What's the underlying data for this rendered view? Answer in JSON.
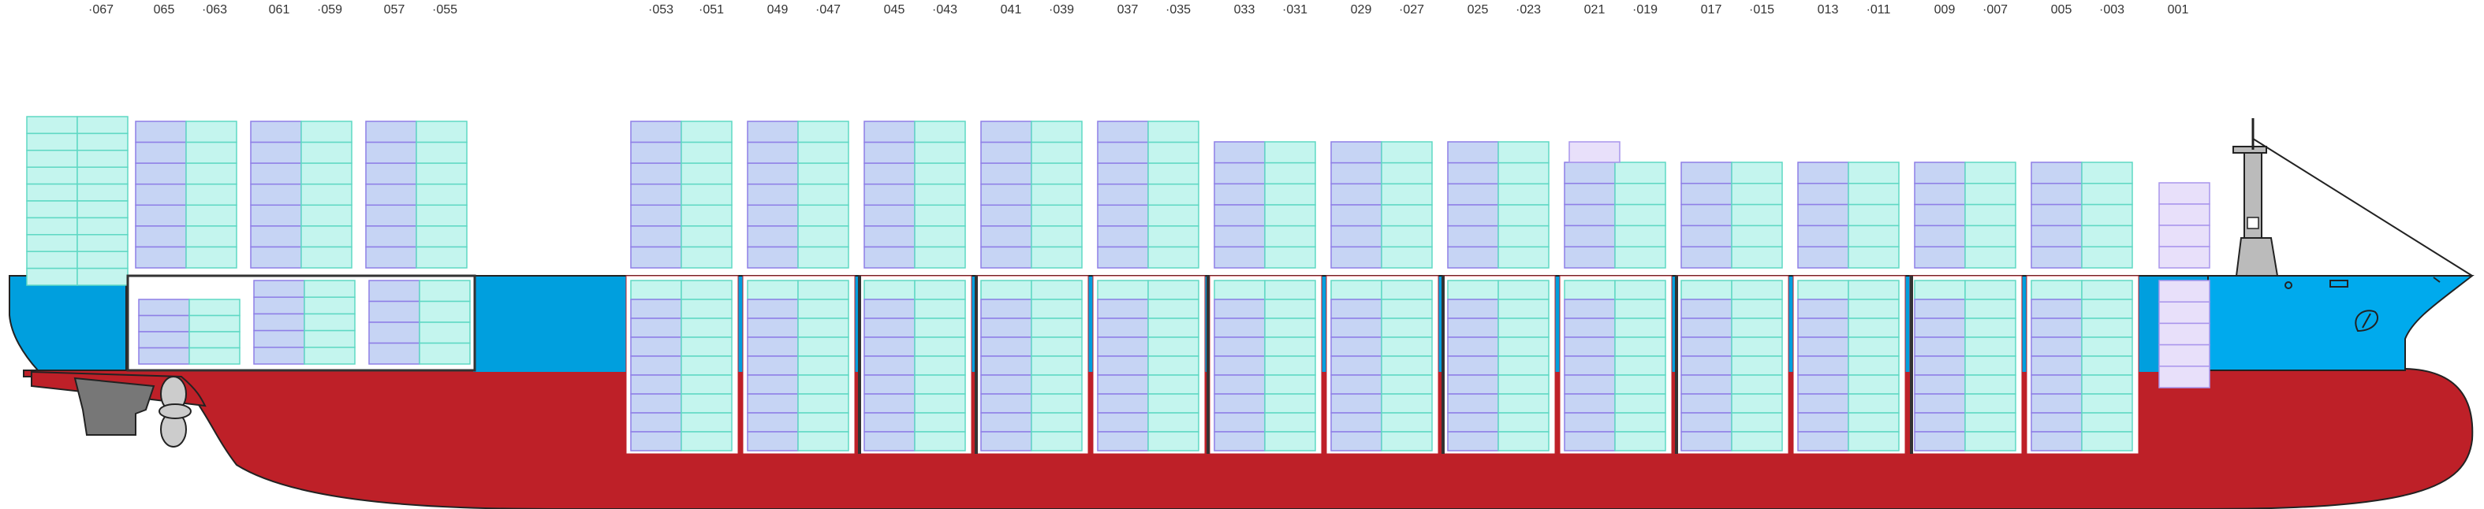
{
  "bay_labels": [
    "·067",
    "065",
    "·063",
    "061",
    "·059",
    "057",
    "·055",
    "·053",
    "·051",
    "049",
    "·047",
    "045",
    "·043",
    "041",
    "·039",
    "037",
    "·035",
    "033",
    "·031",
    "029",
    "·027",
    "025",
    "·023",
    "021",
    "·019",
    "017",
    "·015",
    "013",
    "·011",
    "009",
    "·007",
    "005",
    "·003",
    "001"
  ],
  "colors": {
    "hull_red": "#be2028",
    "hull_blue": "#009fde",
    "bow_blue": "#00aaed",
    "deck_line": "#ffffff",
    "container_blue_fill": "#c6d4f4",
    "container_blue_edge": "#8e7fe6",
    "container_green_fill": "#c4f5ee",
    "container_green_edge": "#5fd8c4",
    "container_purple_fill": "#e8e0fa",
    "container_purple_edge": "#a995ec",
    "bulkhead": "#333333",
    "rudder_grey": "#777777",
    "superstructure_grey": "#bbbbbb"
  },
  "icons": [
    "bow-logo-icon",
    "rudder-icon",
    "propeller-icon",
    "mast-icon"
  ]
}
